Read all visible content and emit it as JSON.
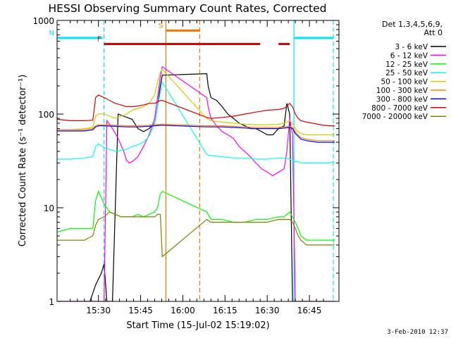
{
  "chart_data": {
    "type": "line",
    "title": "HESSI Observing Summary Count Rates, Corrected",
    "xlabel": "Start Time (15-Jul-02 15:19:02)",
    "ylabel": "Corrected Count Rate (s⁻¹ detector⁻¹)",
    "yscale": "log",
    "ylim": [
      1,
      1000
    ],
    "xlim_minutes": [
      15.3,
      45.5
    ],
    "x_ticks": [
      {
        "label": "15:30",
        "minute": 30
      },
      {
        "label": "15:45",
        "minute": 45
      },
      {
        "label": "16:00",
        "minute": 60
      },
      {
        "label": "16:15",
        "minute": 75
      },
      {
        "label": "16:30",
        "minute": 90
      },
      {
        "label": "16:45",
        "minute": 105
      }
    ],
    "y_ticks": [
      {
        "label": "1",
        "value": 1
      },
      {
        "label": "10",
        "value": 10
      },
      {
        "label": "100",
        "value": 100
      },
      {
        "label": "1000",
        "value": 1000
      }
    ],
    "legend_header": [
      "Det 1,3,4,5,6,9,",
      "Att 0"
    ],
    "legend_placement": "right",
    "footer_date": "3-Feb-2010 12:37",
    "flags": [
      {
        "label": "N",
        "color": "#00e5ee",
        "segments": [
          [
            15.3,
            31.5
          ],
          [
            99.5,
            113.5
          ]
        ],
        "level": 650
      },
      {
        "label": "F",
        "color": "#dd0000",
        "segments": [
          [
            32.0,
            87.5
          ],
          [
            94.0,
            98.0
          ]
        ],
        "level": 560
      },
      {
        "label": "S",
        "color": "#ee7700",
        "segments": [
          [
            54.0,
            66.0
          ]
        ],
        "level": 780
      }
    ],
    "markers": [
      {
        "minute": 32.0,
        "color": "#00e5ee",
        "style": "dashed"
      },
      {
        "minute": 54.0,
        "color": "#ee7700",
        "style": "solid"
      },
      {
        "minute": 66.0,
        "color": "#ee7700",
        "style": "dashed"
      },
      {
        "minute": 99.5,
        "color": "#00e5ee",
        "style": "solid"
      },
      {
        "minute": 113.5,
        "color": "#00e5ee",
        "style": "dashed"
      }
    ],
    "series": [
      {
        "name": "3 - 6 keV",
        "color": "#000000",
        "x": [
          15.3,
          27,
          29,
          31,
          32,
          33,
          35,
          37,
          39,
          41,
          42,
          44,
          46,
          48,
          50,
          51,
          52,
          52.7,
          68.5,
          69,
          70,
          72,
          74,
          76,
          78,
          80,
          82,
          84,
          86,
          88,
          90,
          92,
          94,
          96,
          97,
          98,
          99,
          100,
          102,
          104,
          106,
          108,
          110,
          112,
          114
        ],
        "y": [
          1,
          1,
          1.5,
          2,
          2.5,
          1,
          1,
          100,
          95,
          90,
          88,
          70,
          65,
          70,
          80,
          120,
          200,
          260,
          270,
          200,
          150,
          140,
          120,
          100,
          90,
          80,
          75,
          70,
          70,
          65,
          60,
          60,
          70,
          75,
          130,
          100,
          1,
          1,
          1,
          1,
          1,
          1,
          1,
          1,
          1
        ]
      },
      {
        "name": "6 - 12 keV",
        "color": "#ff00ff",
        "x": [
          15.3,
          26,
          28,
          30,
          31.5,
          32,
          33,
          35,
          37,
          39,
          40,
          41,
          42,
          44,
          46,
          48,
          50,
          51,
          52,
          52.7,
          68.5,
          69,
          70,
          72,
          74,
          76,
          78,
          80,
          82,
          84,
          86,
          88,
          90,
          92,
          94,
          96,
          97,
          98,
          99,
          100,
          101,
          102,
          104,
          106,
          108,
          110,
          112,
          114
        ],
        "y": [
          1,
          1,
          1,
          1,
          1,
          1,
          85,
          70,
          55,
          40,
          32,
          30,
          31,
          35,
          45,
          60,
          90,
          150,
          250,
          320,
          150,
          120,
          90,
          75,
          65,
          60,
          55,
          45,
          40,
          35,
          30,
          26,
          24,
          22,
          24,
          26,
          40,
          90,
          60,
          1,
          1,
          1,
          1,
          1,
          1,
          1,
          1,
          1
        ]
      },
      {
        "name": "12 - 25 keV",
        "color": "#00ff00",
        "x": [
          15.3,
          20,
          25,
          28,
          29,
          30,
          32,
          34,
          36,
          38,
          40,
          42,
          44,
          46,
          48,
          50,
          51,
          52,
          52.7,
          68.5,
          70,
          74,
          78,
          82,
          86,
          90,
          94,
          96,
          98,
          99,
          100,
          101,
          102,
          104,
          106,
          108,
          110,
          112,
          114
        ],
        "y": [
          5.5,
          6,
          6,
          6,
          12,
          15,
          11,
          9,
          8.5,
          8,
          8,
          8,
          8.5,
          8,
          8.5,
          9,
          10,
          14,
          15,
          9,
          7.5,
          7.5,
          7,
          7,
          7.5,
          7.5,
          8,
          8,
          9,
          8,
          7,
          6,
          5,
          4.5,
          4.5,
          4.5,
          4.5,
          4.5,
          4.5
        ]
      },
      {
        "name": "25 - 50 keV",
        "color": "#00ffff",
        "x": [
          15.3,
          20,
          25,
          28,
          29,
          30,
          32,
          34,
          36,
          38,
          40,
          42,
          44,
          46,
          48,
          50,
          51,
          52,
          52.7,
          68.5,
          70,
          74,
          78,
          82,
          86,
          90,
          94,
          96,
          98,
          99,
          100,
          101,
          102,
          104,
          106,
          108,
          110,
          112,
          114
        ],
        "y": [
          33,
          33,
          34,
          35,
          45,
          48,
          44,
          42,
          40,
          41,
          42,
          45,
          47,
          50,
          58,
          80,
          120,
          170,
          220,
          37,
          36,
          35,
          34,
          34,
          33,
          33,
          34,
          34,
          33,
          32,
          31,
          31,
          30,
          30,
          30,
          30,
          30,
          30,
          31
        ]
      },
      {
        "name": "50 - 100 keV",
        "color": "#cccc00",
        "x": [
          15.3,
          20,
          25,
          28,
          29,
          30,
          32,
          34,
          36,
          38,
          40,
          42,
          44,
          46,
          48,
          50,
          51,
          52,
          52.7,
          68.5,
          70,
          74,
          78,
          82,
          86,
          90,
          94,
          96,
          98,
          99,
          100,
          101,
          102,
          104,
          106,
          108,
          110,
          112,
          114
        ],
        "y": [
          68,
          68,
          70,
          72,
          95,
          100,
          100,
          95,
          90,
          95,
          100,
          110,
          115,
          120,
          130,
          160,
          220,
          280,
          300,
          90,
          85,
          82,
          80,
          78,
          77,
          77,
          78,
          80,
          85,
          80,
          70,
          65,
          62,
          60,
          60,
          60,
          60,
          60,
          60
        ]
      },
      {
        "name": "100 - 300 keV",
        "color": "#ff8800",
        "x": [
          15.3,
          20,
          25,
          28,
          29,
          30,
          32,
          36,
          40,
          44,
          48,
          50,
          52,
          52.7,
          68.5,
          70,
          74,
          78,
          82,
          86,
          90,
          94,
          98,
          99,
          100,
          101,
          102,
          104,
          106,
          108,
          110,
          112,
          114
        ],
        "y": [
          68,
          68,
          68,
          70,
          75,
          77,
          77,
          76,
          75,
          75,
          76,
          77,
          78,
          78,
          75,
          75,
          75,
          74,
          73,
          72,
          72,
          72,
          74,
          72,
          65,
          60,
          56,
          54,
          53,
          52,
          52,
          52,
          52
        ]
      },
      {
        "name": "300 - 800 keV",
        "color": "#0000ff",
        "x": [
          15.3,
          20,
          25,
          28,
          29,
          30,
          32,
          36,
          40,
          44,
          48,
          50,
          52,
          52.7,
          68.5,
          70,
          74,
          78,
          82,
          86,
          90,
          94,
          98,
          99,
          100,
          101,
          102,
          104,
          106,
          108,
          110,
          112,
          114
        ],
        "y": [
          66,
          66,
          66,
          68,
          73,
          75,
          75,
          74,
          73,
          73,
          74,
          75,
          76,
          76,
          73,
          73,
          73,
          72,
          71,
          70,
          70,
          70,
          72,
          70,
          62,
          58,
          54,
          52,
          51,
          50,
          50,
          50,
          50
        ]
      },
      {
        "name": "800 - 7000 keV",
        "color": "#dd0000",
        "x": [
          15.3,
          20,
          25,
          28,
          29,
          30,
          32,
          34,
          36,
          38,
          40,
          42,
          44,
          46,
          48,
          50,
          51,
          52,
          52.7,
          68.5,
          70,
          74,
          78,
          82,
          86,
          90,
          94,
          96,
          98,
          99,
          100,
          101,
          102,
          104,
          106,
          108,
          110,
          112,
          114
        ],
        "y": [
          88,
          85,
          85,
          86,
          150,
          160,
          150,
          140,
          130,
          125,
          120,
          120,
          122,
          125,
          130,
          130,
          135,
          140,
          140,
          92,
          90,
          92,
          95,
          100,
          105,
          110,
          112,
          115,
          130,
          120,
          100,
          90,
          85,
          82,
          80,
          78,
          76,
          75,
          75
        ]
      },
      {
        "name": "7000 - 20000 keV",
        "color": "#808000",
        "x": [
          15.3,
          20,
          25,
          28,
          29,
          30,
          32,
          34,
          36,
          38,
          40,
          42,
          44,
          46,
          48,
          50,
          51,
          52,
          52.7,
          68.5,
          70,
          74,
          78,
          82,
          86,
          90,
          94,
          96,
          98,
          99,
          100,
          101,
          102,
          104,
          106,
          108,
          110,
          112,
          114
        ],
        "y": [
          4.5,
          4.5,
          4.5,
          5,
          6.5,
          7.5,
          8,
          9,
          8.5,
          8,
          8,
          8,
          8,
          8,
          8,
          8,
          8.5,
          8.5,
          3,
          7.5,
          7,
          7,
          7,
          7,
          7,
          7,
          7.5,
          7.5,
          7.5,
          7,
          6,
          5,
          4.5,
          4,
          4,
          4,
          4,
          4,
          4
        ]
      }
    ]
  }
}
